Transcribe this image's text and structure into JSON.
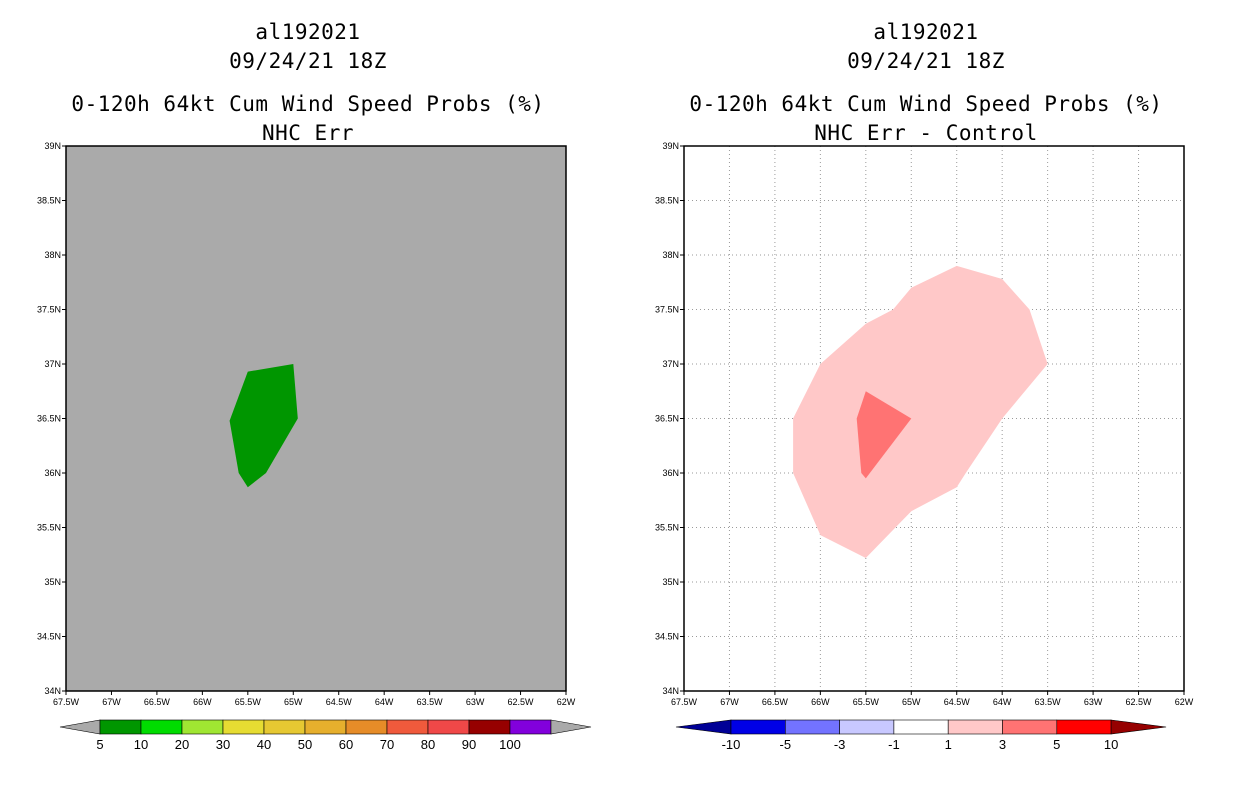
{
  "chart_data": [
    {
      "type": "heatmap",
      "id": "left",
      "titles": [
        "al192021",
        "09/24/21 18Z",
        "0-120h 64kt Cum Wind Speed Probs (%)",
        "NHC Err"
      ],
      "xlim": [
        -67.5,
        -62
      ],
      "ylim": [
        34,
        39
      ],
      "x_ticks": [
        -67.5,
        -67,
        -66.5,
        -66,
        -65.5,
        -65,
        -64.5,
        -64,
        -63.5,
        -63,
        -62.5,
        -62
      ],
      "x_tick_labels": [
        "67.5W",
        "67W",
        "66.5W",
        "66W",
        "65.5W",
        "65W",
        "64.5W",
        "64W",
        "63.5W",
        "63W",
        "62.5W",
        "62W"
      ],
      "y_ticks": [
        34,
        34.5,
        35,
        35.5,
        36,
        36.5,
        37,
        37.5,
        38,
        38.5,
        39
      ],
      "y_tick_labels": [
        "34N",
        "34.5N",
        "35N",
        "35.5N",
        "36N",
        "36.5N",
        "37N",
        "37.5N",
        "38N",
        "38.5N",
        "39N"
      ],
      "grid": false,
      "background_color": "#aaaaaa",
      "regions": [
        {
          "name": "5-10%",
          "color": "#009600",
          "coords": [
            [
              -65.7,
              36.48
            ],
            [
              -65.5,
              36.93
            ],
            [
              -65.0,
              37.0
            ],
            [
              -64.95,
              36.5
            ],
            [
              -65.3,
              36.0
            ],
            [
              -65.5,
              35.87
            ],
            [
              -65.6,
              36.0
            ]
          ]
        }
      ],
      "colorbar": {
        "labels": [
          "5",
          "10",
          "20",
          "30",
          "40",
          "50",
          "60",
          "70",
          "80",
          "90",
          "100"
        ],
        "colors": [
          "#009600",
          "#00dc00",
          "#a0e632",
          "#e6dc32",
          "#e6c832",
          "#e6af2d",
          "#e68c28",
          "#f05a3c",
          "#f04848",
          "#960000",
          "#8200dc"
        ],
        "low_end_color": "#aaaaaa",
        "high_end_color": "#aaaaaa"
      }
    },
    {
      "type": "heatmap",
      "id": "right",
      "titles": [
        "al192021",
        "09/24/21 18Z",
        "0-120h 64kt Cum Wind Speed Probs (%)",
        "NHC Err - Control"
      ],
      "xlim": [
        -67.5,
        -62
      ],
      "ylim": [
        34,
        39
      ],
      "x_ticks": [
        -67.5,
        -67,
        -66.5,
        -66,
        -65.5,
        -65,
        -64.5,
        -64,
        -63.5,
        -63,
        -62.5,
        -62
      ],
      "x_tick_labels": [
        "67.5W",
        "67W",
        "66.5W",
        "66W",
        "65.5W",
        "65W",
        "64.5W",
        "64W",
        "63.5W",
        "63W",
        "62.5W",
        "62W"
      ],
      "y_ticks": [
        34,
        34.5,
        35,
        35.5,
        36,
        36.5,
        37,
        37.5,
        38,
        38.5,
        39
      ],
      "y_tick_labels": [
        "34N",
        "34.5N",
        "35N",
        "35.5N",
        "36N",
        "36.5N",
        "37N",
        "37.5N",
        "38N",
        "38.5N",
        "39N"
      ],
      "grid": true,
      "background_color": "#ffffff",
      "regions": [
        {
          "name": "1-3",
          "color": "#ffc8c8",
          "coords": [
            [
              -66.3,
              36.5
            ],
            [
              -66.0,
              37.0
            ],
            [
              -65.5,
              37.37
            ],
            [
              -65.2,
              37.5
            ],
            [
              -65.0,
              37.7
            ],
            [
              -64.5,
              37.9
            ],
            [
              -64.0,
              37.78
            ],
            [
              -63.7,
              37.5
            ],
            [
              -63.5,
              37.0
            ],
            [
              -64.0,
              36.5
            ],
            [
              -64.4,
              36.0
            ],
            [
              -64.5,
              35.87
            ],
            [
              -65.0,
              35.65
            ],
            [
              -65.5,
              35.22
            ],
            [
              -66.0,
              35.43
            ],
            [
              -66.3,
              36.0
            ]
          ]
        },
        {
          "name": "3-5",
          "color": "#ff7373",
          "coords": [
            [
              -65.6,
              36.5
            ],
            [
              -65.5,
              36.75
            ],
            [
              -65.0,
              36.5
            ],
            [
              -65.5,
              35.95
            ],
            [
              -65.55,
              36.0
            ]
          ]
        }
      ],
      "colorbar": {
        "labels": [
          "-10",
          "-5",
          "-3",
          "-1",
          "1",
          "3",
          "5",
          "10"
        ],
        "colors": [
          "#0000e6",
          "#7373ff",
          "#c8c8ff",
          "#ffffff",
          "#ffc8c8",
          "#ff7373",
          "#ff0000"
        ],
        "low_end_color": "#000096",
        "high_end_color": "#960000"
      }
    }
  ]
}
